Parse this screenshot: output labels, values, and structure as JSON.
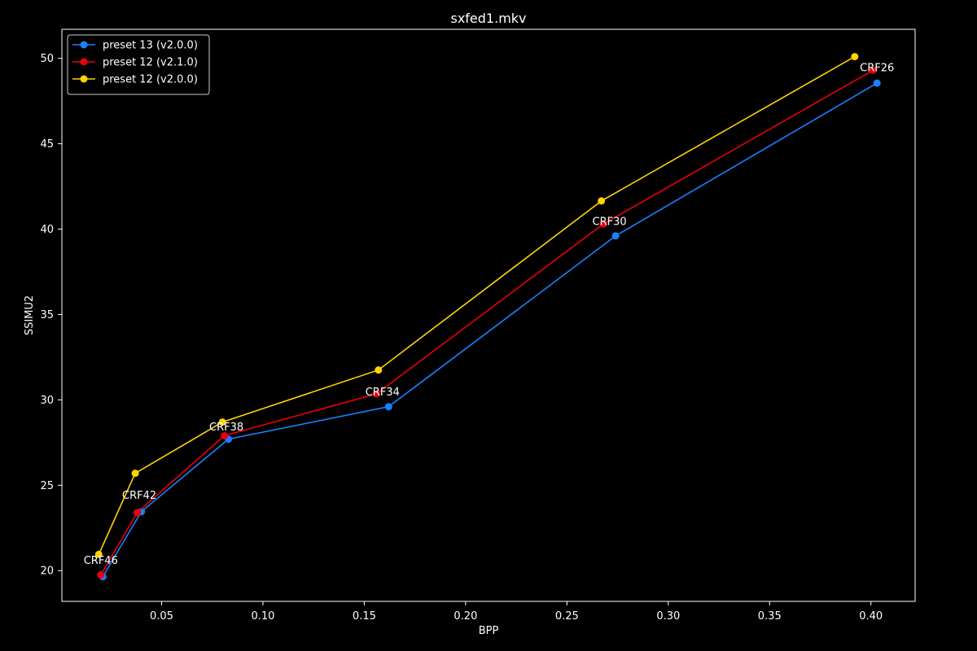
{
  "chart_data": {
    "type": "line",
    "title": "sxfed1.mkv",
    "xlabel": "BPP",
    "ylabel": "SSIMU2",
    "xlim": [
      0.0008,
      0.4218
    ],
    "ylim": [
      18.2,
      51.7
    ],
    "xticks": [
      0.05,
      0.1,
      0.15,
      0.2,
      0.25,
      0.3,
      0.35,
      0.4
    ],
    "xtick_labels": [
      "0.05",
      "0.10",
      "0.15",
      "0.20",
      "0.25",
      "0.30",
      "0.35",
      "0.40"
    ],
    "yticks": [
      20,
      25,
      30,
      35,
      40,
      45,
      50
    ],
    "ytick_labels": [
      "20",
      "25",
      "30",
      "35",
      "40",
      "45",
      "50"
    ],
    "grid": false,
    "legend_position": "top-left",
    "series": [
      {
        "name": "preset 13 (v2.0.0)",
        "color": "#1a80ff",
        "x": [
          0.021,
          0.04,
          0.083,
          0.162,
          0.274,
          0.403
        ],
        "y": [
          19.65,
          23.45,
          27.7,
          29.6,
          39.6,
          48.55
        ]
      },
      {
        "name": "preset 12 (v2.1.0)",
        "color": "#e8000b",
        "x": [
          0.02,
          0.038,
          0.081,
          0.156,
          0.268,
          0.401
        ],
        "y": [
          19.75,
          23.4,
          27.9,
          30.35,
          40.3,
          49.3
        ]
      },
      {
        "name": "preset 12 (v2.0.0)",
        "color": "#ffd400",
        "x": [
          0.019,
          0.037,
          0.08,
          0.157,
          0.267,
          0.392
        ],
        "y": [
          20.95,
          25.7,
          28.7,
          31.75,
          41.65,
          50.1
        ]
      }
    ],
    "annotations": [
      {
        "text": "CRF46",
        "x": 0.02,
        "y": 20.4
      },
      {
        "text": "CRF42",
        "x": 0.039,
        "y": 24.2
      },
      {
        "text": "CRF38",
        "x": 0.082,
        "y": 28.2
      },
      {
        "text": "CRF34",
        "x": 0.159,
        "y": 30.25
      },
      {
        "text": "CRF30",
        "x": 0.271,
        "y": 40.25
      },
      {
        "text": "CRF26",
        "x": 0.403,
        "y": 49.25
      }
    ]
  }
}
